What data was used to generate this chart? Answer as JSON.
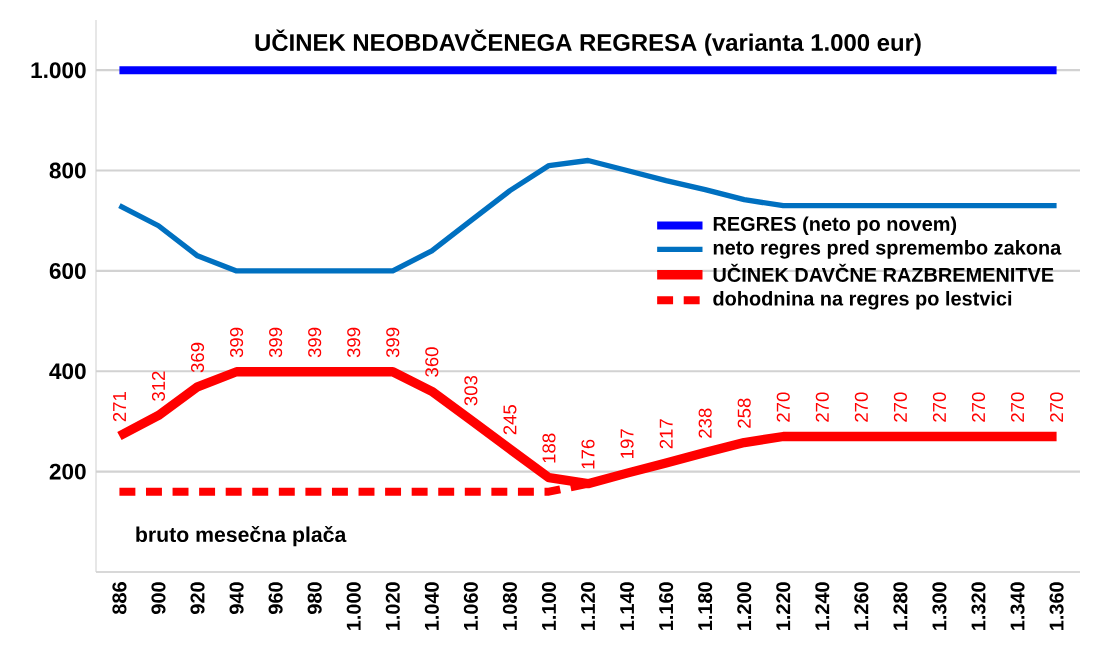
{
  "chart_data": {
    "type": "line",
    "title": "UČINEK NEOBDAVČENEGA REGRESA (varianta 1.000 eur)",
    "categories": [
      "886",
      "900",
      "920",
      "940",
      "960",
      "980",
      "1.000",
      "1.020",
      "1.040",
      "1.060",
      "1.080",
      "1.100",
      "1.120",
      "1.140",
      "1.160",
      "1.180",
      "1.200",
      "1.220",
      "1.240",
      "1.260",
      "1.280",
      "1.300",
      "1.320",
      "1.340",
      "1.360"
    ],
    "series": [
      {
        "name": "REGRES (neto po novem)",
        "color": "#0000ff",
        "line_style": "solid",
        "values": [
          1000,
          1000,
          1000,
          1000,
          1000,
          1000,
          1000,
          1000,
          1000,
          1000,
          1000,
          1000,
          1000,
          1000,
          1000,
          1000,
          1000,
          1000,
          1000,
          1000,
          1000,
          1000,
          1000,
          1000,
          1000
        ]
      },
      {
        "name": "neto regres pred spremembo zakona",
        "color": "#0070c0",
        "line_style": "solid",
        "values": [
          730,
          690,
          630,
          600,
          600,
          600,
          600,
          600,
          640,
          700,
          760,
          810,
          820,
          800,
          780,
          762,
          742,
          730,
          730,
          730,
          730,
          730,
          730,
          730,
          730
        ]
      },
      {
        "name": "UČINEK DAVČNE RAZBREMENITVE",
        "color": "#ff0000",
        "line_style": "solid",
        "values": [
          271,
          312,
          369,
          399,
          399,
          399,
          399,
          399,
          360,
          303,
          245,
          188,
          176,
          197,
          217,
          238,
          258,
          270,
          270,
          270,
          270,
          270,
          270,
          270,
          270
        ],
        "value_labels": [
          "271",
          "312",
          "369",
          "399",
          "399",
          "399",
          "399",
          "399",
          "360",
          "303",
          "245",
          "188",
          "176",
          "197",
          "217",
          "238",
          "258",
          "270",
          "270",
          "270",
          "270",
          "270",
          "270",
          "270",
          "270"
        ]
      },
      {
        "name": "dohodnina na regres po lestvici",
        "color": "#ff0000",
        "line_style": "dashed",
        "values": [
          160,
          160,
          160,
          160,
          160,
          160,
          160,
          160,
          160,
          160,
          160,
          160,
          176,
          null,
          null,
          null,
          null,
          null,
          null,
          null,
          null,
          null,
          null,
          null,
          null
        ]
      }
    ],
    "ylim": [
      0,
      1100
    ],
    "yticks": [
      200,
      400,
      600,
      800,
      {
        "value": 1000,
        "label": "1.000"
      }
    ],
    "grid": "y",
    "legend": "right",
    "marker": "none",
    "annotations": [
      "bruto mesečna plača"
    ]
  }
}
